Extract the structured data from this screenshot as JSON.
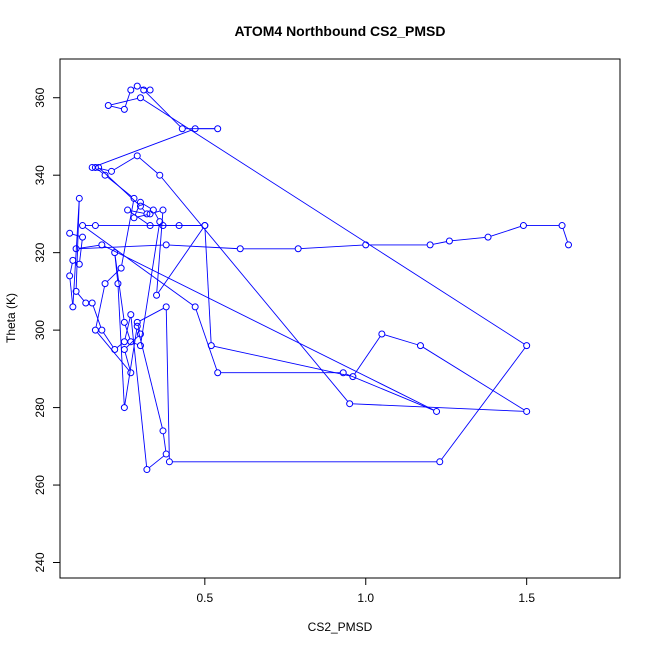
{
  "chart_data": {
    "type": "line",
    "title": "ATOM4 Northbound CS2_PMSD",
    "xlabel": "CS2_PMSD",
    "ylabel": "Theta (K)",
    "xlim": [
      0.05,
      1.79
    ],
    "ylim": [
      236,
      370
    ],
    "xticks": [
      "0.5",
      "1.0",
      "1.5"
    ],
    "yticks": [
      "240",
      "260",
      "280",
      "300",
      "320",
      "340",
      "360"
    ],
    "color": "#0000ff",
    "x": [
      0.08,
      0.12,
      0.11,
      0.09,
      0.08,
      0.09,
      0.11,
      0.1,
      0.13,
      0.15,
      0.18,
      0.22,
      0.25,
      0.27,
      0.32,
      0.38,
      0.37,
      0.29,
      0.25,
      0.23,
      0.22,
      0.25,
      0.27,
      0.3,
      0.36,
      0.34,
      0.3,
      0.28,
      0.33,
      0.37,
      0.35,
      0.5,
      0.52,
      0.96,
      1.05,
      1.17,
      1.5,
      0.95,
      0.36,
      0.29,
      0.21,
      0.16,
      0.19,
      0.28,
      0.24,
      0.19,
      0.16,
      0.27,
      0.25,
      0.3,
      0.29,
      0.38,
      0.39,
      1.23,
      1.5,
      0.3,
      0.2,
      0.25,
      0.27,
      0.29,
      0.33,
      0.31,
      0.43,
      0.54,
      0.47,
      0.15,
      0.17,
      0.3,
      0.32,
      0.26,
      0.33,
      0.37,
      0.42,
      0.5,
      0.16,
      0.12,
      0.47,
      0.54,
      0.93,
      1.22,
      0.18,
      0.1,
      0.38,
      0.61,
      0.79,
      1.0,
      1.2,
      1.26,
      1.38,
      1.49,
      1.61,
      1.63
    ],
    "y": [
      325,
      324,
      317,
      318,
      314,
      306,
      334,
      310,
      307,
      307,
      300,
      295,
      297,
      304,
      264,
      268,
      274,
      301,
      280,
      312,
      320,
      302,
      297,
      296,
      328,
      331,
      333,
      329,
      330,
      331,
      309,
      327,
      296,
      288,
      299,
      296,
      279,
      281,
      340,
      345,
      341,
      342,
      340,
      334,
      316,
      312,
      300,
      289,
      295,
      299,
      302,
      306,
      266,
      266,
      296,
      360,
      358,
      357,
      362,
      363,
      362,
      362,
      352,
      352,
      352,
      342,
      342,
      332,
      330,
      331,
      327,
      327,
      327,
      327,
      327,
      327,
      306,
      289,
      289,
      279,
      322,
      321,
      322,
      321,
      321,
      322,
      322,
      323,
      324,
      327,
      327,
      322
    ]
  }
}
